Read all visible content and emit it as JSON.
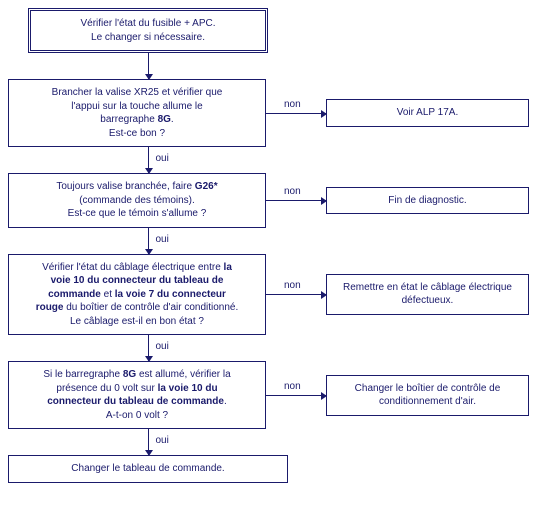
{
  "labels": {
    "yes": "oui",
    "no": "non"
  },
  "colors": {
    "line": "#1a1a6b",
    "text": "#1a1a6b",
    "bg": "#ffffff"
  },
  "start": {
    "line1": "Vérifier l'état du fusible + APC.",
    "line2": "Le changer si nécessaire."
  },
  "step1": {
    "l1": "Brancher la valise XR25 et vérifier que",
    "l2": "l'appui sur la touche allume le",
    "l3a": "barregraphe ",
    "l3b": "8G",
    "l3c": ".",
    "l4": "Est-ce bon ?",
    "right": "Voir ALP 17A."
  },
  "step2": {
    "l1a": "Toujours valise branchée, faire ",
    "l1b": "G26*",
    "l2": "(commande des témoins).",
    "l3": "Est-ce que le témoin s'allume ?",
    "right": "Fin de diagnostic."
  },
  "step3": {
    "l1a": "Vérifier l'état du câblage électrique entre ",
    "l1b": "la",
    "l2": "voie 10 du connecteur du tableau de",
    "l3a": "commande",
    "l3b": " et ",
    "l3c": "la voie 7 du connecteur",
    "l4a": "rouge",
    "l4b": " du boîtier de contrôle d'air conditionné.",
    "l5": "Le câblage est-il en bon état ?",
    "right1": "Remettre en état le câblage électrique",
    "right2": "défectueux."
  },
  "step4": {
    "l1a": "Si le barregraphe ",
    "l1b": "8G",
    "l1c": " est allumé, vérifier la",
    "l2a": "présence du 0 volt sur ",
    "l2b": "la voie 10 du",
    "l3": "connecteur du tableau de commande",
    "l3c": ".",
    "l4": "A-t-on 0 volt ?",
    "right1": "Changer le boîtier de contrôle de",
    "right2": "conditionnement d'air."
  },
  "final": {
    "text": "Changer le tableau de commande."
  }
}
